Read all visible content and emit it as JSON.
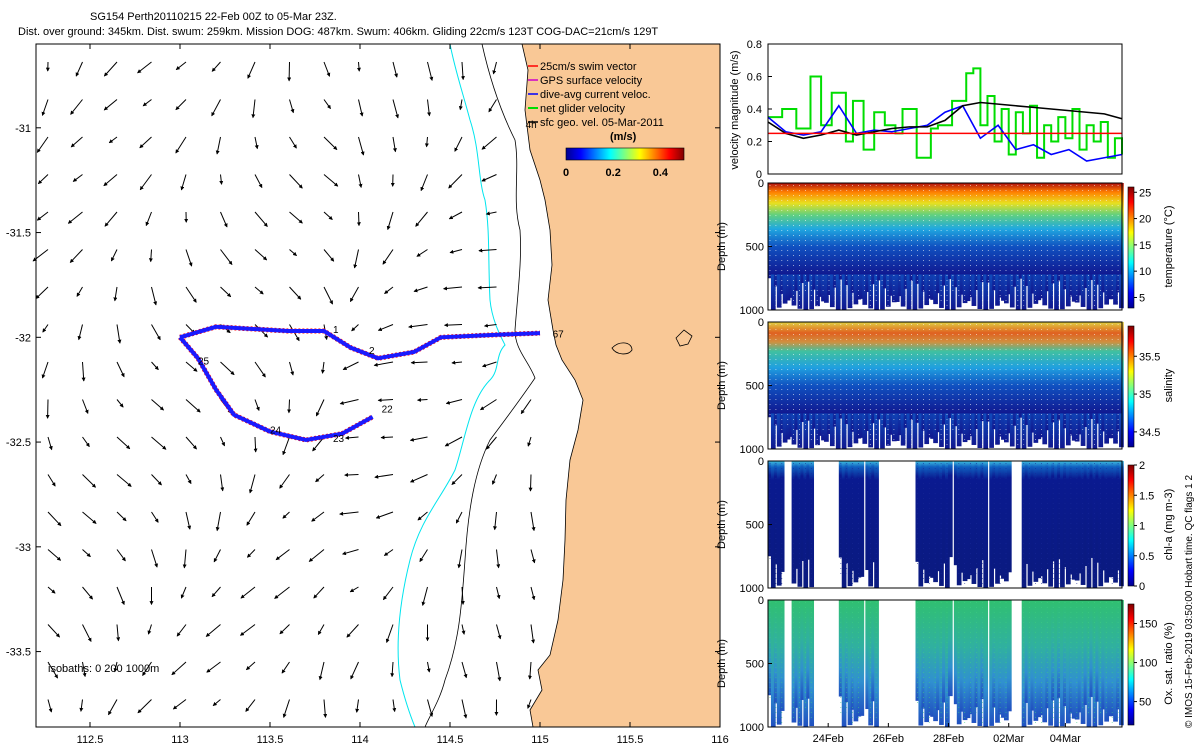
{
  "header": {
    "line1": "SG154 Perth20110215 22-Feb 00Z to 05-Mar 23Z.",
    "line2": "Dist. over ground: 345km. Dist. swum: 259km. Mission DOG: 487km. Swum: 406km. Gliding 22cm/s 123T COG-DAC=21cm/s 129T"
  },
  "copyright": "© IMOS 15-Feb-2019 03:50:00 Hobart time. QC flags 1 2",
  "colors": {
    "land": "#f9c896",
    "isobath_200": "#00e5ee",
    "glider_track": "#1a1aff",
    "swim_vector": "#ff0000",
    "net_velocity": "#00dd00",
    "sfc_vector": "#000000"
  },
  "chart_data": [
    {
      "type": "map",
      "id": "track-map",
      "xlim": [
        112.2,
        116.0
      ],
      "ylim": [
        -33.86,
        -30.6
      ],
      "x_ticks": [
        "112.5",
        "113",
        "113.5",
        "114",
        "114.5",
        "115",
        "115.5",
        "116"
      ],
      "x_tick_values": [
        112.5,
        113,
        113.5,
        114,
        114.5,
        115,
        115.5,
        116
      ],
      "y_ticks": [
        "-31",
        "-31.5",
        "-32",
        "-32.5",
        "-33",
        "-33.5"
      ],
      "y_tick_values": [
        -31,
        -31.5,
        -32,
        -32.5,
        -33,
        -33.5
      ],
      "legend": [
        {
          "label": "25cm/s swim vector",
          "color": "#ff0000"
        },
        {
          "label": "GPS surface velocity",
          "color": "#cc00cc"
        },
        {
          "label": "dive-avg current veloc.",
          "color": "#0000ff"
        },
        {
          "label": "net glider velocity",
          "color": "#00dd00"
        },
        {
          "label": "sfc geo. vel. 05-Mar-2011",
          "color": "#000000"
        }
      ],
      "colorbar": {
        "title": "(m/s)",
        "ticks": [
          "0",
          "0.2",
          "0.4"
        ],
        "tick_values": [
          0,
          0.2,
          0.4
        ],
        "range": [
          0,
          0.5
        ]
      },
      "isobath_label": "isobaths: 0   200  1000m",
      "track": [
        [
          113.0,
          -32.0
        ],
        [
          113.2,
          -31.95
        ],
        [
          113.6,
          -31.97
        ],
        [
          113.8,
          -31.97
        ],
        [
          113.95,
          -32.05
        ],
        [
          114.1,
          -32.1
        ],
        [
          114.3,
          -32.07
        ],
        [
          114.45,
          -32.0
        ],
        [
          114.7,
          -31.99
        ],
        [
          115.0,
          -31.98
        ],
        [
          113.0,
          -32.0
        ],
        [
          113.1,
          -32.1
        ],
        [
          113.2,
          -32.25
        ],
        [
          113.3,
          -32.37
        ],
        [
          113.5,
          -32.45
        ],
        [
          113.7,
          -32.49
        ],
        [
          113.9,
          -32.46
        ],
        [
          114.07,
          -32.38
        ]
      ],
      "track_labels": [
        {
          "text": "1",
          "x": 113.85,
          "y": -31.98
        },
        {
          "text": "2",
          "x": 114.05,
          "y": -32.08
        },
        {
          "text": "25",
          "x": 113.1,
          "y": -32.13
        },
        {
          "text": "24",
          "x": 113.5,
          "y": -32.46
        },
        {
          "text": "23",
          "x": 113.85,
          "y": -32.5
        },
        {
          "text": "22",
          "x": 114.12,
          "y": -32.36
        },
        {
          "text": "67",
          "x": 115.07,
          "y": -32.0
        },
        {
          "text": "4h",
          "x": 114.92,
          "y": -31.0
        }
      ]
    },
    {
      "type": "line",
      "id": "velocity-magnitude",
      "ylabel": "velocity magnitude (m/s)",
      "ylim": [
        0,
        0.8
      ],
      "y_ticks": [
        "0",
        "0.2",
        "0.4",
        "0.6",
        "0.8"
      ],
      "y_tick_values": [
        0,
        0.2,
        0.4,
        0.6,
        0.8
      ],
      "xlim": [
        0,
        100
      ],
      "series": [
        {
          "name": "net glider velocity",
          "color": "#00dd00",
          "step": true,
          "x": [
            0,
            4,
            8,
            12,
            15,
            18,
            22,
            24,
            27,
            30,
            33,
            36,
            38,
            42,
            46,
            48,
            52,
            56,
            58,
            60,
            62,
            64,
            66,
            68,
            70,
            72,
            74,
            76,
            78,
            80,
            82,
            84,
            86,
            88,
            90,
            92,
            94,
            96,
            98,
            100
          ],
          "y": [
            0.35,
            0.4,
            0.28,
            0.6,
            0.3,
            0.5,
            0.2,
            0.45,
            0.15,
            0.38,
            0.3,
            0.25,
            0.4,
            0.1,
            0.28,
            0.3,
            0.45,
            0.62,
            0.65,
            0.3,
            0.48,
            0.2,
            0.4,
            0.12,
            0.38,
            0.25,
            0.42,
            0.1,
            0.3,
            0.2,
            0.35,
            0.22,
            0.4,
            0.15,
            0.3,
            0.2,
            0.32,
            0.1,
            0.22,
            0.12
          ]
        },
        {
          "name": "dive-avg current veloc.",
          "color": "#0000ff",
          "x": [
            0,
            5,
            10,
            15,
            20,
            25,
            30,
            35,
            40,
            45,
            50,
            55,
            60,
            65,
            70,
            75,
            80,
            85,
            90,
            95,
            100
          ],
          "y": [
            0.35,
            0.26,
            0.24,
            0.26,
            0.42,
            0.25,
            0.27,
            0.26,
            0.28,
            0.3,
            0.38,
            0.42,
            0.22,
            0.3,
            0.15,
            0.18,
            0.12,
            0.15,
            0.08,
            0.1,
            0.12
          ]
        },
        {
          "name": "sfc geo. vel.",
          "color": "#000000",
          "x": [
            0,
            5,
            10,
            15,
            20,
            25,
            30,
            35,
            40,
            45,
            50,
            55,
            60,
            65,
            70,
            75,
            80,
            85,
            90,
            95,
            100
          ],
          "y": [
            0.32,
            0.25,
            0.22,
            0.24,
            0.27,
            0.24,
            0.26,
            0.28,
            0.29,
            0.29,
            0.33,
            0.42,
            0.44,
            0.43,
            0.42,
            0.41,
            0.4,
            0.39,
            0.38,
            0.37,
            0.34
          ]
        },
        {
          "name": "mean",
          "color": "#ff0000",
          "x": [
            0,
            100
          ],
          "y": [
            0.25,
            0.25
          ]
        }
      ]
    },
    {
      "type": "heatmap",
      "id": "temperature-section",
      "ylabel": "Depth (m)",
      "y_ticks": [
        "0",
        "500",
        "1000"
      ],
      "y_tick_values": [
        0,
        500,
        1000
      ],
      "ylim": [
        0,
        1000
      ],
      "colorbar_label": "temperature (°C)",
      "colorbar_ticks": [
        "5",
        "10",
        "15",
        "20",
        "25"
      ],
      "colorbar_tick_values": [
        5,
        10,
        15,
        20,
        25
      ],
      "crange": [
        3,
        26
      ]
    },
    {
      "type": "heatmap",
      "id": "salinity-section",
      "ylabel": "Depth (m)",
      "y_ticks": [
        "0",
        "500",
        "1000"
      ],
      "y_tick_values": [
        0,
        500,
        1000
      ],
      "ylim": [
        0,
        1000
      ],
      "colorbar_label": "salinity",
      "colorbar_ticks": [
        "34.5",
        "35",
        "35.5"
      ],
      "colorbar_tick_values": [
        34.5,
        35,
        35.5
      ],
      "crange": [
        34.3,
        35.9
      ]
    },
    {
      "type": "heatmap",
      "id": "chla-section",
      "ylabel": "Depth (m)",
      "y_ticks": [
        "0",
        "500",
        "1000"
      ],
      "y_tick_values": [
        0,
        500,
        1000
      ],
      "ylim": [
        0,
        1000
      ],
      "colorbar_label": "chl-a (mg m-3)",
      "colorbar_ticks": [
        "0",
        "0.5",
        "1",
        "1.5",
        "2"
      ],
      "colorbar_tick_values": [
        0,
        0.5,
        1,
        1.5,
        2
      ],
      "crange": [
        0,
        2
      ]
    },
    {
      "type": "heatmap",
      "id": "oxygen-section",
      "ylabel": "Depth (m)",
      "y_ticks": [
        "0",
        "500",
        "1000"
      ],
      "y_tick_values": [
        0,
        500,
        1000
      ],
      "ylim": [
        0,
        1000
      ],
      "colorbar_label": "Ox. sat. ratio (%)",
      "colorbar_ticks": [
        "50",
        "100",
        "150"
      ],
      "colorbar_tick_values": [
        50,
        100,
        150
      ],
      "crange": [
        20,
        175
      ],
      "x_ticks": [
        "24Feb",
        "26Feb",
        "28Feb",
        "02Mar",
        "04Mar"
      ],
      "x_tick_fracs": [
        0.17,
        0.34,
        0.51,
        0.68,
        0.84
      ]
    }
  ]
}
